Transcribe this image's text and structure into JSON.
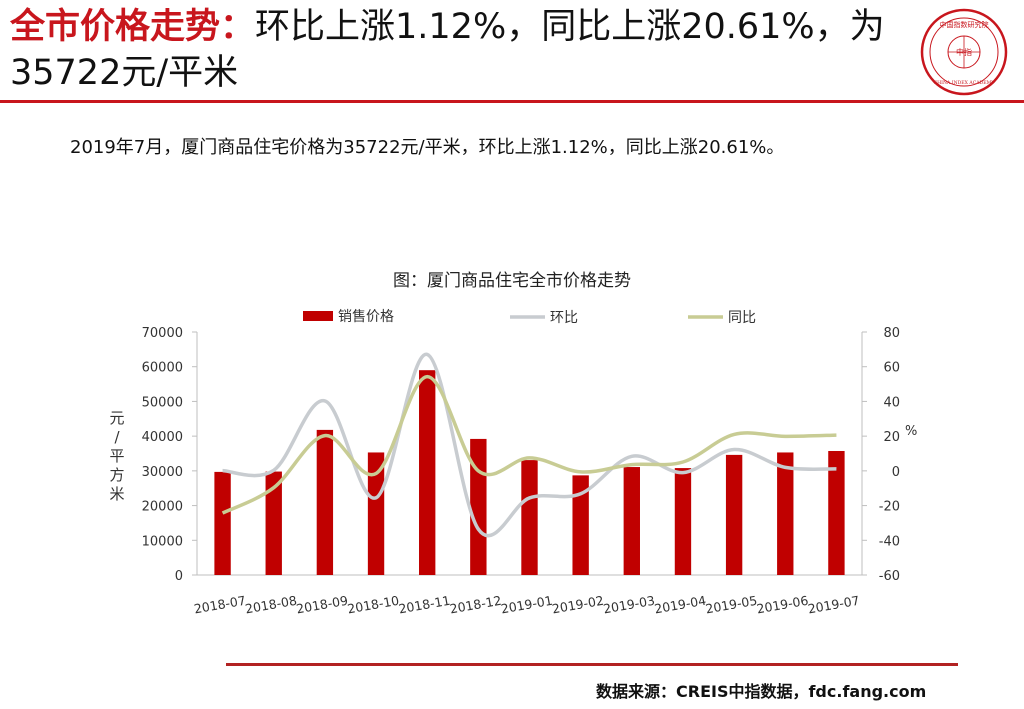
{
  "header": {
    "title_accent": "全市价格走势：",
    "title_rest": "环比上涨1.12%，同比上涨20.61%，为35722元/平米"
  },
  "logo": {
    "text_top": "中国指数研究院",
    "text_center": "中指",
    "text_bottom": "CHINA INDEX ACADEMY",
    "color": "#c8161d"
  },
  "summary": "2019年7月，厦门商品住宅价格为35722元/平米，环比上涨1.12%，同比上涨20.61%。",
  "source": "数据来源：CREIS中指数据，fdc.fang.com",
  "chart_data": {
    "type": "bar",
    "title": "图：厦门商品住宅全市价格走势",
    "categories": [
      "2018-07",
      "2018-08",
      "2018-09",
      "2018-10",
      "2018-11",
      "2018-12",
      "2019-01",
      "2019-02",
      "2019-03",
      "2019-04",
      "2019-05",
      "2019-06",
      "2019-07"
    ],
    "series": [
      {
        "name": "销售价格",
        "type": "bar",
        "axis": "left",
        "color": "#c00000",
        "values": [
          29700,
          29800,
          41800,
          35300,
          59000,
          39200,
          33100,
          28700,
          31100,
          30800,
          34600,
          35300,
          35722
        ]
      },
      {
        "name": "环比",
        "type": "line",
        "axis": "right",
        "color": "#c8ccd0",
        "values": [
          0.1,
          0.3,
          40.3,
          -15.5,
          67.1,
          -33.6,
          -15.6,
          -13.2,
          8.4,
          -1.0,
          12.3,
          2.0,
          1.12
        ]
      },
      {
        "name": "同比",
        "type": "line",
        "axis": "right",
        "color": "#c8cc94",
        "values": [
          -24.3,
          -9.7,
          20.3,
          -1.5,
          54.3,
          0.0,
          7.5,
          -0.6,
          3.6,
          5.1,
          21.0,
          19.9,
          20.61
        ]
      }
    ],
    "ylabel": "元/平方米",
    "ylabel_right": "%",
    "ylim": [
      0,
      70000
    ],
    "yticks": [
      "0",
      "10000",
      "20000",
      "30000",
      "40000",
      "50000",
      "60000",
      "70000"
    ],
    "ylim_right": [
      -60,
      80
    ],
    "yticks_right": [
      "-60",
      "-40",
      "-20",
      "0",
      "20",
      "40",
      "60",
      "80"
    ],
    "legend_position": "top",
    "grid": false
  }
}
